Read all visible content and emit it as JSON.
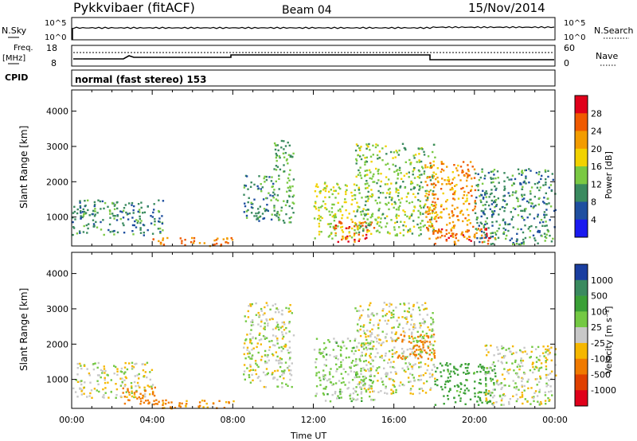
{
  "header": {
    "station": "Pykkvibaer (fitACF)",
    "beam": "Beam 04",
    "date": "15/Nov/2014"
  },
  "strips": {
    "nsky": {
      "label": "N.Sky",
      "ticks": [
        "10^5",
        "10^0"
      ],
      "right_ticks": [
        "10^5",
        "10^0"
      ],
      "right_label": "N.Search"
    },
    "freq": {
      "label_top": "Freq.",
      "label_unit": "[MHz]",
      "ticks": [
        "18",
        "8"
      ],
      "right_ticks": [
        "60",
        "0"
      ],
      "right_label": "Nave"
    },
    "cpid": {
      "label": "CPID",
      "text": "normal (fast stereo) 153"
    }
  },
  "axes": {
    "ylabel": "Slant Range [km]",
    "yticks": [
      "4000",
      "3000",
      "2000",
      "1000"
    ],
    "xlabel": "Time UT",
    "xticks": [
      "00:00",
      "04:00",
      "08:00",
      "12:00",
      "16:00",
      "20:00",
      "00:00"
    ]
  },
  "power_scale": {
    "label": "Power [dB]",
    "ticks": [
      "28",
      "24",
      "20",
      "16",
      "12",
      "8",
      "4"
    ],
    "colors": [
      "#e0001a",
      "#f05a00",
      "#f39c00",
      "#f2d200",
      "#7ac943",
      "#3a8a5f",
      "#1f4fa0",
      "#1a1af0"
    ]
  },
  "velocity_scale": {
    "label": "Velocity [m s⁻¹]",
    "ticks": [
      "1000",
      "500",
      "100",
      "25",
      "-25",
      "-100",
      "-500",
      "-1000"
    ],
    "colors": [
      "#1a3ea0",
      "#3a8a5f",
      "#3aa036",
      "#74c943",
      "#c8c8c8",
      "#f5b700",
      "#f07a00",
      "#e04000",
      "#e0001a"
    ]
  },
  "chart_data": [
    {
      "type": "heatmap",
      "title": "Power",
      "x_range": [
        "00:00",
        "00:00"
      ],
      "ylim": [
        180,
        4600
      ],
      "colorbar_label": "Power [dB]",
      "colorbar_range": [
        0,
        32
      ],
      "regions": [
        {
          "t": [
            "00:00",
            "04:30"
          ],
          "range": [
            500,
            1500
          ],
          "power": 10
        },
        {
          "t": [
            "04:00",
            "08:00"
          ],
          "range": [
            200,
            450
          ],
          "power": 24
        },
        {
          "t": [
            "08:30",
            "10:00"
          ],
          "range": [
            900,
            2200
          ],
          "power": 10
        },
        {
          "t": [
            "10:00",
            "11:00"
          ],
          "range": [
            800,
            3200
          ],
          "power": 12
        },
        {
          "t": [
            "12:00",
            "14:00"
          ],
          "range": [
            400,
            2000
          ],
          "power": 16
        },
        {
          "t": [
            "13:00",
            "15:00"
          ],
          "range": [
            300,
            900
          ],
          "power": 26
        },
        {
          "t": [
            "14:00",
            "18:00"
          ],
          "range": [
            500,
            3100
          ],
          "power": 14
        },
        {
          "t": [
            "17:30",
            "20:00"
          ],
          "range": [
            400,
            2600
          ],
          "power": 22
        },
        {
          "t": [
            "18:00",
            "21:00"
          ],
          "range": [
            250,
            700
          ],
          "power": 26
        },
        {
          "t": [
            "20:00",
            "00:00"
          ],
          "range": [
            250,
            2400
          ],
          "power": 10
        }
      ]
    },
    {
      "type": "heatmap",
      "title": "Velocity",
      "x_range": [
        "00:00",
        "00:00"
      ],
      "ylim": [
        180,
        4600
      ],
      "colorbar_label": "Velocity [m s⁻¹]",
      "regions": [
        {
          "t": [
            "00:00",
            "04:00"
          ],
          "range": [
            500,
            1500
          ],
          "velocity": 0
        },
        {
          "t": [
            "02:30",
            "04:30"
          ],
          "range": [
            300,
            800
          ],
          "velocity": -150
        },
        {
          "t": [
            "04:00",
            "08:00"
          ],
          "range": [
            200,
            450
          ],
          "velocity": -120
        },
        {
          "t": [
            "08:30",
            "11:00"
          ],
          "range": [
            800,
            3200
          ],
          "velocity": 0
        },
        {
          "t": [
            "12:00",
            "15:00"
          ],
          "range": [
            400,
            2200
          ],
          "velocity": 50
        },
        {
          "t": [
            "14:00",
            "18:00"
          ],
          "range": [
            600,
            3200
          ],
          "velocity": 0
        },
        {
          "t": [
            "16:00",
            "18:00"
          ],
          "range": [
            1600,
            2300
          ],
          "velocity": -200
        },
        {
          "t": [
            "18:00",
            "21:00"
          ],
          "range": [
            300,
            1500
          ],
          "velocity": 150
        },
        {
          "t": [
            "20:30",
            "00:00"
          ],
          "range": [
            300,
            2000
          ],
          "velocity": 0
        }
      ]
    }
  ]
}
